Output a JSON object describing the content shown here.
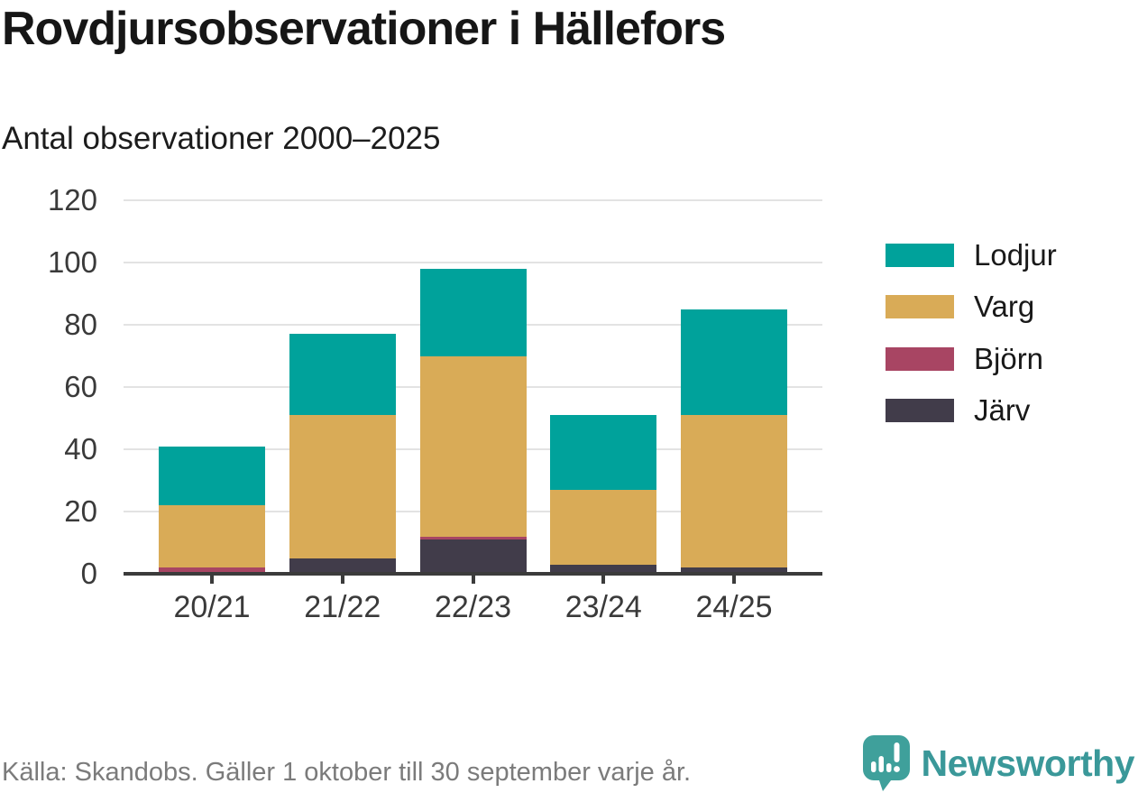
{
  "header": {
    "title": "Rovdjursobservationer i Hällefors",
    "subtitle": "Antal observationer 2000–2025"
  },
  "footer": {
    "source": "Källa: Skandobs. Gäller 1 oktober till 30 september varje år.",
    "brand": "Newsworthy",
    "brand_color": "#3a9899",
    "logo_icon": "speech-bubble-bar-chart-icon",
    "logo_color": "#3fa09b"
  },
  "colors": {
    "lodjur": "#00a29b",
    "varg": "#d9ab57",
    "bjorn": "#a84563",
    "jarv": "#413c4a",
    "gridline": "#e3e3e3",
    "axis": "#3b3b3b",
    "tick_text": "#3a3a3a",
    "title_text": "#161616",
    "source_text": "#7b7b7b"
  },
  "chart_data": {
    "type": "bar",
    "stacked": true,
    "title": "Rovdjursobservationer i Hällefors",
    "subtitle": "Antal observationer 2000–2025",
    "categories": [
      "20/21",
      "21/22",
      "22/23",
      "23/24",
      "24/25"
    ],
    "series": [
      {
        "name": "Lodjur",
        "color": "#00a29b",
        "values": [
          19,
          26,
          28,
          24,
          34
        ]
      },
      {
        "name": "Varg",
        "color": "#d9ab57",
        "values": [
          20,
          46,
          58,
          24,
          49
        ]
      },
      {
        "name": "Björn",
        "color": "#a84563",
        "values": [
          2,
          0,
          1,
          0,
          0
        ]
      },
      {
        "name": "Järv",
        "color": "#413c4a",
        "values": [
          0,
          5,
          11,
          3,
          2
        ]
      }
    ],
    "stack_order_bottom_to_top": [
      "Järv",
      "Björn",
      "Varg",
      "Lodjur"
    ],
    "totals": [
      41,
      77,
      98,
      51,
      85
    ],
    "xlabel": "",
    "ylabel": "",
    "ylim": [
      0,
      120
    ],
    "yticks": [
      0,
      20,
      40,
      60,
      80,
      100,
      120
    ],
    "grid": "horizontal",
    "legend_position": "right"
  }
}
